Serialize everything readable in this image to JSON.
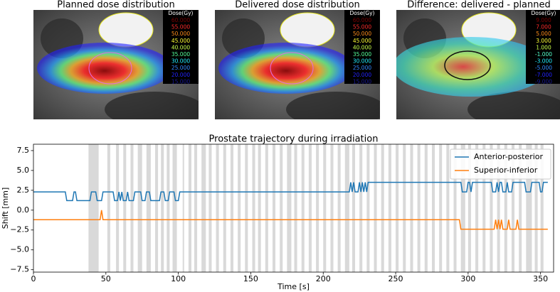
{
  "images": [
    {
      "title": "Planned dose distribution",
      "legend_title": "Dose(Gy)",
      "legend": [
        {
          "label": "60.000",
          "color": "#7a0000"
        },
        {
          "label": "55.000",
          "color": "#ff2a2a"
        },
        {
          "label": "50.000",
          "color": "#ff8c1a"
        },
        {
          "label": "45.000",
          "color": "#ffff33"
        },
        {
          "label": "40.000",
          "color": "#c8ff4a"
        },
        {
          "label": "35.000",
          "color": "#55ff9a"
        },
        {
          "label": "30.000",
          "color": "#22eeff"
        },
        {
          "label": "25.000",
          "color": "#3388ff"
        },
        {
          "label": "20.000",
          "color": "#2222ff"
        },
        {
          "label": "15.000",
          "color": "#1a1a9a"
        }
      ]
    },
    {
      "title": "Delivered dose distribution",
      "legend_title": "Dose(Gy)",
      "legend": [
        {
          "label": "60.000",
          "color": "#7a0000"
        },
        {
          "label": "55.000",
          "color": "#ff2a2a"
        },
        {
          "label": "50.000",
          "color": "#ff8c1a"
        },
        {
          "label": "45.000",
          "color": "#ffff33"
        },
        {
          "label": "40.000",
          "color": "#c8ff4a"
        },
        {
          "label": "35.000",
          "color": "#55ff9a"
        },
        {
          "label": "30.000",
          "color": "#22eeff"
        },
        {
          "label": "25.000",
          "color": "#3388ff"
        },
        {
          "label": "20.000",
          "color": "#2222ff"
        },
        {
          "label": "15.000",
          "color": "#1a1a9a"
        }
      ]
    },
    {
      "title": "Difference: delivered - planned",
      "legend_title": "Dose(Gy)",
      "legend": [
        {
          "label": "9.000",
          "color": "#7a0000"
        },
        {
          "label": "7.000",
          "color": "#ff2a2a"
        },
        {
          "label": "5.000",
          "color": "#ff8c1a"
        },
        {
          "label": "3.000",
          "color": "#ffff33"
        },
        {
          "label": "1.000",
          "color": "#c8ff4a"
        },
        {
          "label": "-1.000",
          "color": "#55ffcc"
        },
        {
          "label": "-3.000",
          "color": "#22eeff"
        },
        {
          "label": "-5.000",
          "color": "#3388ff"
        },
        {
          "label": "-7.000",
          "color": "#2222ff"
        },
        {
          "label": "-9.000",
          "color": "#1a1a9a"
        }
      ]
    }
  ],
  "chart_data": {
    "type": "line",
    "title": "Prostate trajectory during irradiation",
    "x_label": "Time [s]",
    "y_label": "Shift [mm]",
    "xlim": [
      0,
      359
    ],
    "ylim": [
      -7.8,
      8.3
    ],
    "xticks": [
      0,
      50,
      100,
      150,
      200,
      250,
      300,
      350
    ],
    "yticks": [
      {
        "value": -7.5,
        "label": "−7.5"
      },
      {
        "value": -5,
        "label": "−5.0"
      },
      {
        "value": -2.5,
        "label": "−2.5"
      },
      {
        "value": 0,
        "label": "0.0"
      },
      {
        "value": 2.5,
        "label": "2.5"
      },
      {
        "value": 5,
        "label": "5.0"
      },
      {
        "value": 7.5,
        "label": "7.5"
      }
    ],
    "legend_position": "upper right",
    "shaded_intervals": [
      [
        38,
        45
      ],
      [
        51,
        53
      ],
      [
        57,
        59
      ],
      [
        62,
        64
      ],
      [
        67,
        69
      ],
      [
        72,
        75
      ],
      [
        78,
        81
      ],
      [
        84,
        86
      ],
      [
        88,
        90
      ],
      [
        92,
        94
      ],
      [
        96,
        99
      ],
      [
        103,
        104
      ],
      [
        107,
        109
      ],
      [
        111,
        113
      ],
      [
        116,
        119
      ],
      [
        121,
        123
      ],
      [
        126,
        128
      ],
      [
        131,
        133
      ],
      [
        136,
        138
      ],
      [
        141,
        143
      ],
      [
        146,
        148
      ],
      [
        151,
        153
      ],
      [
        155,
        157
      ],
      [
        160,
        162
      ],
      [
        165,
        167
      ],
      [
        170,
        172
      ],
      [
        175,
        178
      ],
      [
        180,
        182
      ],
      [
        185,
        187
      ],
      [
        190,
        192
      ],
      [
        195,
        197
      ],
      [
        200,
        202
      ],
      [
        205,
        207
      ],
      [
        210,
        212
      ],
      [
        215,
        218
      ],
      [
        220,
        222
      ],
      [
        225,
        227
      ],
      [
        230,
        232
      ],
      [
        235,
        237
      ],
      [
        240,
        242
      ],
      [
        245,
        247
      ],
      [
        250,
        252
      ],
      [
        255,
        257
      ],
      [
        260,
        262
      ],
      [
        265,
        267
      ],
      [
        270,
        272
      ],
      [
        275,
        277
      ],
      [
        280,
        282
      ],
      [
        285,
        287
      ],
      [
        290,
        292
      ],
      [
        295,
        298
      ],
      [
        300,
        302
      ],
      [
        305,
        307
      ],
      [
        310,
        312
      ],
      [
        315,
        317
      ],
      [
        320,
        322
      ],
      [
        325,
        327
      ],
      [
        330,
        332
      ],
      [
        335,
        337
      ],
      [
        340,
        344
      ],
      [
        346,
        348
      ],
      [
        350,
        352
      ]
    ],
    "shade_color": "#d9d9d9",
    "series": [
      {
        "name": "Anterior-posterior",
        "color": "#1f77b4",
        "x": [
          0,
          22,
          23,
          27,
          28,
          29,
          30,
          39,
          40,
          43,
          44,
          47,
          48,
          55,
          56,
          58,
          59,
          60,
          61,
          62,
          64,
          65,
          66,
          69,
          70,
          74,
          75,
          77,
          78,
          80,
          81,
          87,
          88,
          90,
          91,
          93,
          94,
          97,
          98,
          100,
          101,
          218,
          219,
          220,
          221,
          222,
          224,
          225,
          226,
          227,
          228,
          229,
          230,
          231,
          295,
          296,
          299,
          300,
          301,
          302,
          303,
          316,
          317,
          319,
          320,
          321,
          322,
          323,
          324,
          326,
          327,
          328,
          330,
          331,
          339,
          340,
          343,
          344,
          349,
          350,
          351,
          352,
          355
        ],
        "values": [
          2.3,
          2.3,
          1.2,
          1.2,
          2.3,
          2.3,
          1.2,
          1.2,
          2.3,
          2.3,
          1.2,
          1.2,
          2.3,
          2.3,
          1.2,
          1.2,
          2.3,
          1.2,
          2.3,
          1.2,
          1.2,
          2.3,
          1.2,
          1.2,
          2.3,
          2.3,
          1.2,
          1.2,
          2.3,
          2.3,
          1.2,
          1.2,
          2.3,
          2.3,
          1.2,
          1.2,
          2.3,
          2.3,
          1.2,
          1.2,
          2.3,
          2.3,
          3.5,
          2.3,
          3.5,
          2.3,
          2.3,
          3.5,
          2.3,
          3.5,
          2.3,
          3.5,
          2.3,
          3.5,
          3.5,
          2.3,
          2.3,
          3.5,
          3.5,
          2.3,
          3.5,
          3.5,
          2.3,
          2.3,
          3.5,
          2.3,
          3.5,
          3.5,
          2.3,
          2.3,
          3.5,
          2.3,
          2.3,
          3.5,
          3.5,
          2.3,
          2.3,
          3.5,
          3.5,
          2.3,
          2.3,
          3.5,
          3.5
        ]
      },
      {
        "name": "Superior-inferior",
        "color": "#ff7f0e",
        "x": [
          0,
          46,
          47,
          48,
          294,
          295,
          318,
          319,
          320,
          321,
          322,
          323,
          324,
          327,
          328,
          329,
          333,
          334,
          335,
          355
        ],
        "values": [
          -1.2,
          -1.2,
          0,
          -1.2,
          -1.2,
          -2.4,
          -2.4,
          -1.2,
          -2.4,
          -1.2,
          -2.4,
          -1.2,
          -2.4,
          -2.4,
          -1.2,
          -2.4,
          -2.4,
          -1.2,
          -2.4,
          -2.4
        ]
      }
    ]
  }
}
